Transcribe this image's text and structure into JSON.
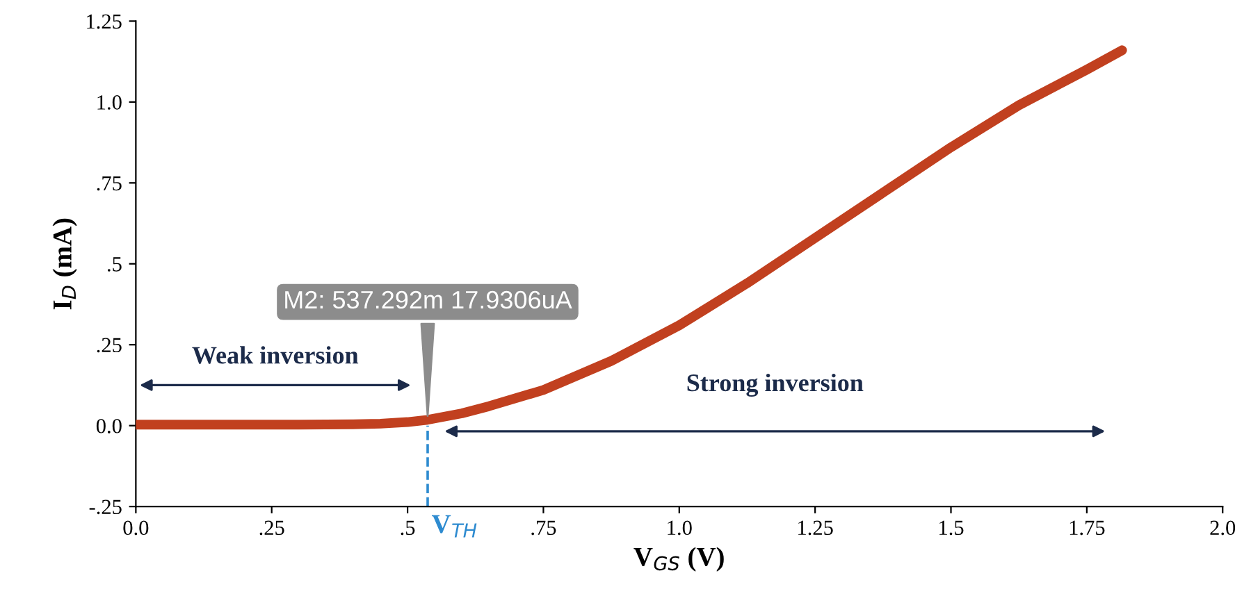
{
  "chart_data": {
    "type": "line",
    "xlabel": "V$_{GS}$ (V)",
    "ylabel": "I$_{D}$ (mA)",
    "series": [
      {
        "color": "#c1401f",
        "x": [
          0,
          0.1,
          0.2,
          0.3,
          0.4,
          0.45,
          0.5,
          0.537,
          0.6,
          0.65,
          0.75,
          0.875,
          1.0,
          1.125,
          1.25,
          1.375,
          1.5,
          1.625,
          1.75,
          1.815
        ],
        "values": [
          0.003,
          0.003,
          0.003,
          0.003,
          0.004,
          0.006,
          0.011,
          0.018,
          0.038,
          0.06,
          0.11,
          0.2,
          0.31,
          0.44,
          0.58,
          0.72,
          0.86,
          0.99,
          1.1,
          1.16
        ]
      }
    ],
    "xlim": [
      0,
      2.0
    ],
    "xticks": [
      {
        "value": 0,
        "label": "0.0"
      },
      {
        "value": 0.25,
        "label": ".25"
      },
      {
        "value": 0.5,
        "label": ".5"
      },
      {
        "value": 0.75,
        "label": ".75"
      },
      {
        "value": 1.0,
        "label": "1.0"
      },
      {
        "value": 1.25,
        "label": "1.25"
      },
      {
        "value": 1.5,
        "label": "1.5"
      },
      {
        "value": 1.75,
        "label": "1.75"
      },
      {
        "value": 2.0,
        "label": "2.0"
      }
    ],
    "ylim": [
      -0.25,
      1.25
    ],
    "yticks": [
      {
        "value": -0.25,
        "label": "-.25"
      },
      {
        "value": 0,
        "label": "0.0"
      },
      {
        "value": 0.25,
        "label": ".25"
      },
      {
        "value": 0.5,
        "label": ".5"
      },
      {
        "value": 0.75,
        "label": ".75"
      },
      {
        "value": 1.0,
        "label": "1.0"
      },
      {
        "value": 1.25,
        "label": "1.25"
      }
    ],
    "ref_lines": [
      {
        "axis": "x",
        "value": 0.537,
        "label": "V$_{TH}$",
        "color": "#2e8bd0",
        "line_style": "dashed"
      }
    ],
    "annotations": [
      {
        "text": "M2: 537.292m 17.9306uA",
        "x": 0.537,
        "y": 0.018
      },
      "Weak inversion",
      "Strong inversion"
    ],
    "grid": false,
    "legend": false,
    "marker": "none",
    "line_style": "solid"
  }
}
